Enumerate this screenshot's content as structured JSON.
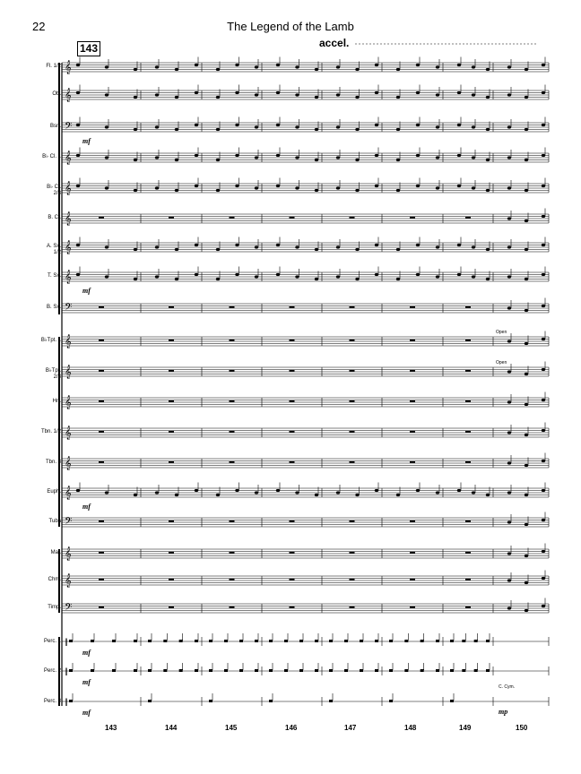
{
  "header": {
    "page_number": "22",
    "title": "The Legend of the Lamb",
    "tempo_marking": "accel.",
    "rehearsal_mark": "143"
  },
  "instruments": [
    {
      "label": "Fl. 1/2",
      "dynamic": ""
    },
    {
      "label": "Ob.",
      "dynamic": ""
    },
    {
      "label": "Bsn.",
      "dynamic": "mf"
    },
    {
      "label": "B♭ Cl. 1",
      "dynamic": ""
    },
    {
      "label": "B♭ Cl.\n2/3",
      "dynamic": ""
    },
    {
      "label": "B. Cl.",
      "dynamic": ""
    },
    {
      "label": "A. Sx.\n1/2",
      "dynamic": ""
    },
    {
      "label": "T. Sx.",
      "dynamic": "mf"
    },
    {
      "label": "B. Sx.",
      "dynamic": ""
    },
    {
      "label": "B♭Tpt. 1",
      "dynamic": ""
    },
    {
      "label": "B♭Tpt.\n2/3",
      "dynamic": ""
    },
    {
      "label": "Hn.",
      "dynamic": ""
    },
    {
      "label": "Tbn. 1/2",
      "dynamic": ""
    },
    {
      "label": "Tbn. 3",
      "dynamic": ""
    },
    {
      "label": "Euph.",
      "dynamic": "mf"
    },
    {
      "label": "Tuba",
      "dynamic": ""
    },
    {
      "label": "Mal.",
      "dynamic": ""
    },
    {
      "label": "Chm.",
      "dynamic": ""
    },
    {
      "label": "Timp.",
      "dynamic": ""
    },
    {
      "label": "Perc. 1",
      "dynamic": "mf"
    },
    {
      "label": "Perc. 2",
      "dynamic": "mf"
    },
    {
      "label": "Perc. 3",
      "dynamic": "mf"
    }
  ],
  "measure_numbers": [
    "143",
    "144",
    "145",
    "146",
    "147",
    "148",
    "149",
    "150"
  ],
  "annotations": {
    "open_1": "Open",
    "open_2": "Open",
    "c_cym": "C. Cym.",
    "mp": "mp",
    "mf": "mf"
  }
}
